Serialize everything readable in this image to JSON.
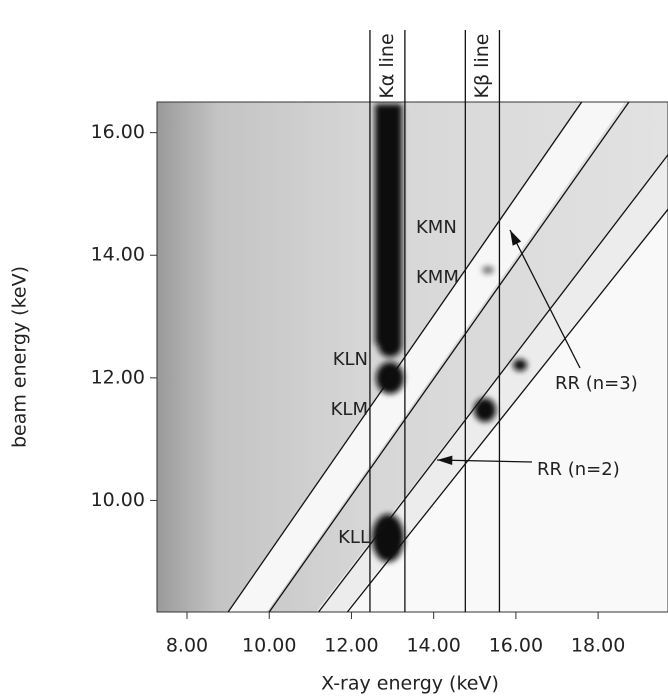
{
  "chart_data": {
    "type": "heatmap",
    "xlabel": "X-ray energy (keV)",
    "ylabel": "beam energy (keV)",
    "xlim": [
      7.27,
      19.7
    ],
    "ylim": [
      8.18,
      16.5
    ],
    "xticks": [
      {
        "value": 8,
        "label": "8.00"
      },
      {
        "value": 10,
        "label": "10.00"
      },
      {
        "value": 12,
        "label": "12.00"
      },
      {
        "value": 14,
        "label": "14.00"
      },
      {
        "value": 16,
        "label": "16.00"
      },
      {
        "value": 18,
        "label": "18.00"
      }
    ],
    "yticks": [
      {
        "value": 10,
        "label": "10.00"
      },
      {
        "value": 12,
        "label": "12.00"
      },
      {
        "value": 14,
        "label": "14.00"
      },
      {
        "value": 16,
        "label": "16.00"
      }
    ],
    "reference_lines": [
      {
        "label": "Kα line",
        "x": [
          12.45,
          13.3
        ]
      },
      {
        "label": "Kβ line",
        "x": [
          14.77,
          15.6
        ]
      }
    ],
    "diagonals": [
      {
        "x": [
          9.0,
          17.6
        ],
        "y": [
          8.18,
          16.5
        ]
      },
      {
        "x": [
          10.0,
          18.75
        ],
        "y": [
          8.18,
          16.5
        ]
      },
      {
        "x": [
          11.2,
          19.7
        ],
        "y": [
          8.18,
          15.64
        ]
      },
      {
        "x": [
          11.9,
          19.7
        ],
        "y": [
          8.18,
          14.75
        ]
      }
    ],
    "annotations": [
      "KMN",
      "KMM",
      "KLN",
      "KLM",
      "KLL",
      "RR (n=3)",
      "RR (n=2)"
    ]
  }
}
